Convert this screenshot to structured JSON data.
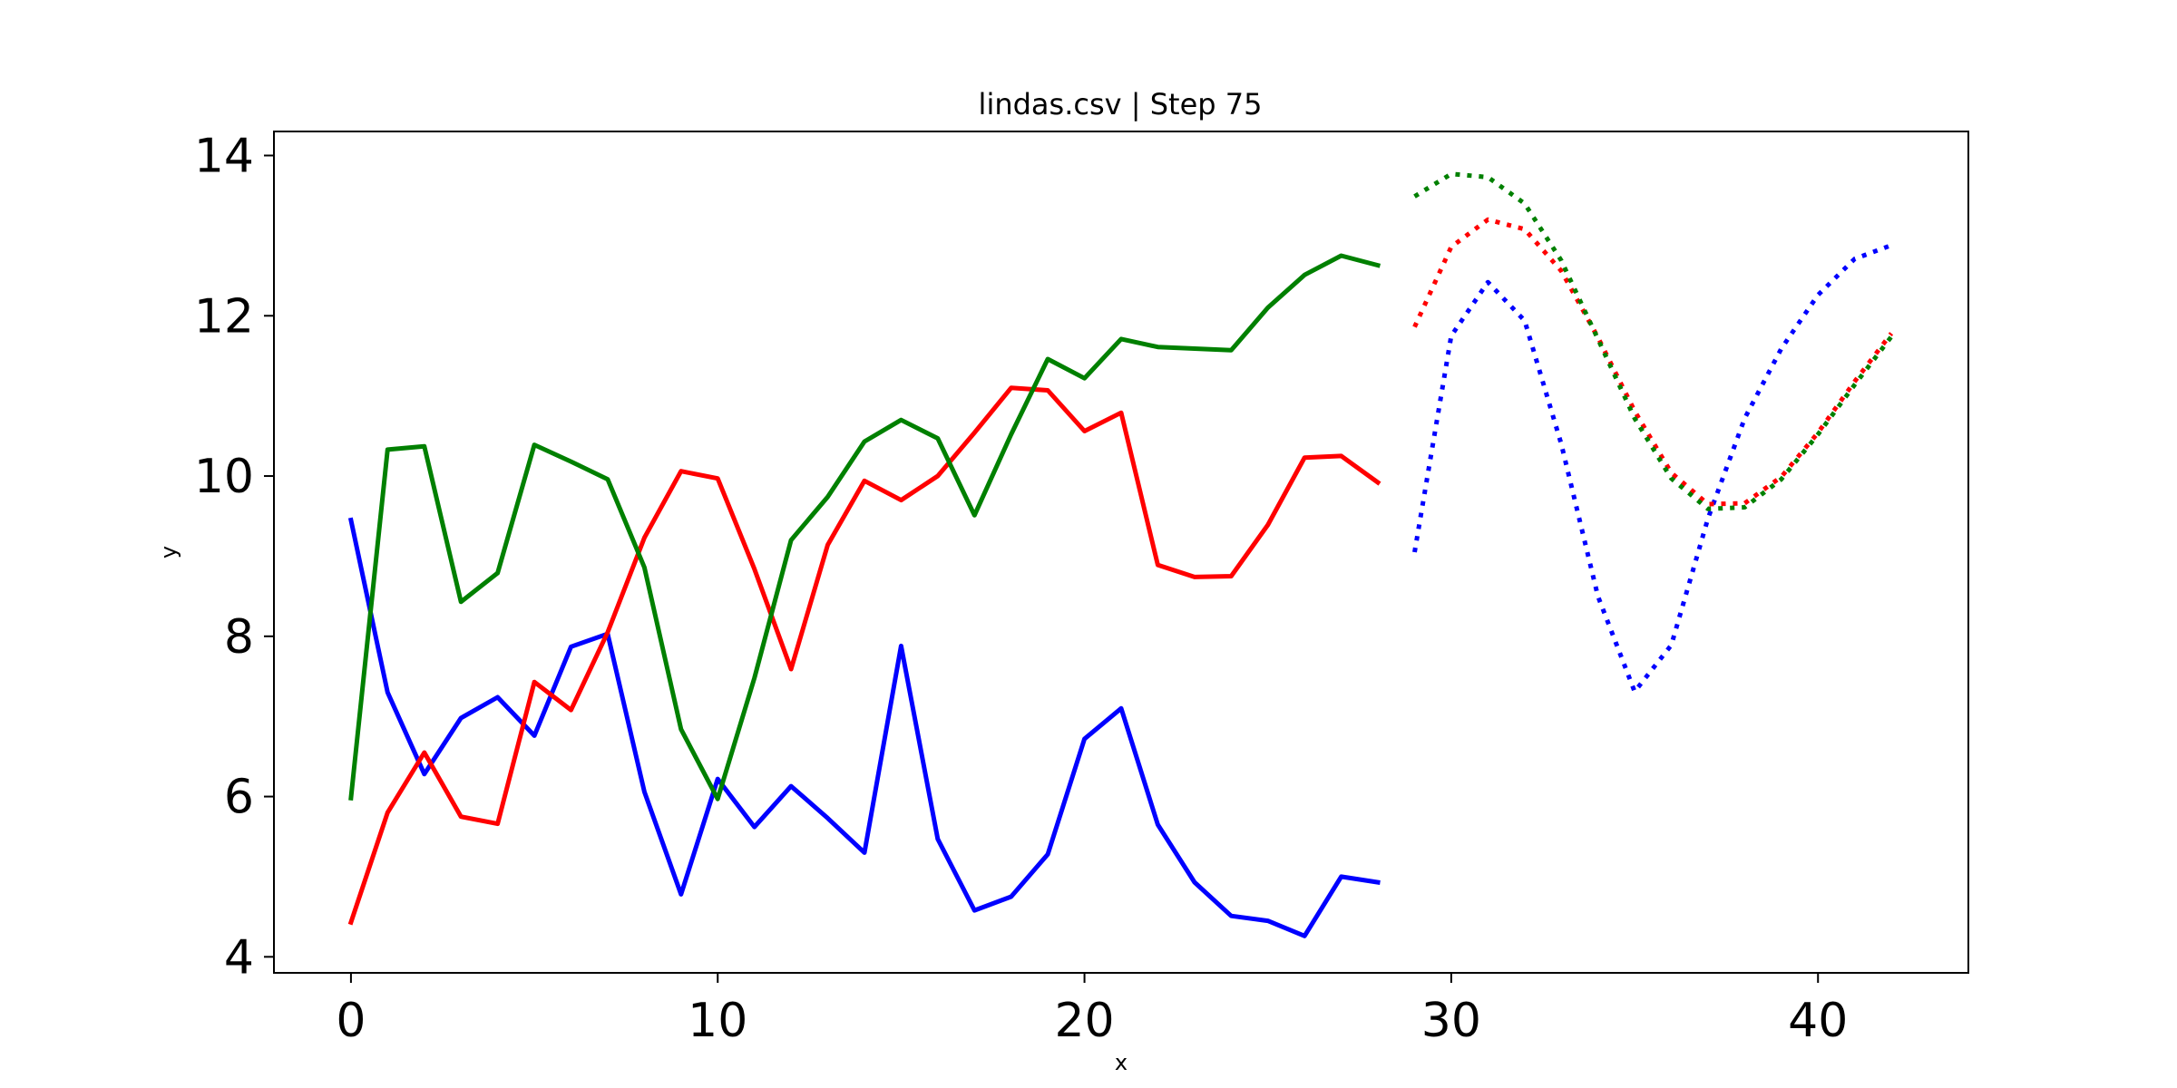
{
  "chart_data": {
    "type": "line",
    "title": "lindas.csv | Step 75",
    "xlabel": "x",
    "ylabel": "y",
    "xlim": [
      -2.1,
      44.1
    ],
    "ylim": [
      3.8,
      14.3
    ],
    "xticks": [
      0,
      10,
      20,
      30,
      40
    ],
    "yticks": [
      4,
      6,
      8,
      10,
      12,
      14
    ],
    "grid": false,
    "legend": "none",
    "series": [
      {
        "color": "#0000ff",
        "style": "solid",
        "x": [
          0,
          1,
          2,
          3,
          4,
          5,
          6,
          7,
          8,
          9,
          10,
          11,
          12,
          13,
          14,
          15,
          16,
          17,
          18,
          19,
          20,
          21,
          22,
          23,
          24,
          25,
          26,
          27,
          28
        ],
        "y": [
          9.45,
          7.3,
          6.28,
          6.98,
          7.24,
          6.76,
          7.87,
          8.03,
          6.06,
          4.78,
          6.22,
          5.62,
          6.13,
          5.73,
          5.3,
          7.88,
          5.47,
          4.58,
          4.75,
          5.28,
          6.72,
          7.1,
          5.65,
          4.93,
          4.51,
          4.45,
          4.26,
          5.0,
          4.93
        ]
      },
      {
        "color": "#ff0000",
        "style": "solid",
        "x": [
          0,
          1,
          2,
          3,
          4,
          5,
          6,
          7,
          8,
          9,
          10,
          11,
          12,
          13,
          14,
          15,
          16,
          17,
          18,
          19,
          20,
          21,
          22,
          23,
          24,
          25,
          26,
          27,
          28
        ],
        "y": [
          4.43,
          5.8,
          6.55,
          5.75,
          5.66,
          7.43,
          7.08,
          8.05,
          9.23,
          10.06,
          9.97,
          8.84,
          7.59,
          9.14,
          9.94,
          9.7,
          10.0,
          10.54,
          11.1,
          11.07,
          10.56,
          10.79,
          8.89,
          8.74,
          8.75,
          9.39,
          10.23,
          10.25,
          9.92
        ]
      },
      {
        "color": "#008000",
        "style": "solid",
        "x": [
          0,
          1,
          2,
          3,
          4,
          5,
          6,
          7,
          8,
          9,
          10,
          11,
          12,
          13,
          14,
          15,
          16,
          17,
          18,
          19,
          20,
          21,
          22,
          23,
          24,
          25,
          26,
          27,
          28
        ],
        "y": [
          5.98,
          10.33,
          10.37,
          8.43,
          8.79,
          10.39,
          10.18,
          9.96,
          8.86,
          6.84,
          5.97,
          7.48,
          9.2,
          9.74,
          10.43,
          10.7,
          10.47,
          9.51,
          10.52,
          11.46,
          11.22,
          11.71,
          11.61,
          11.59,
          11.57,
          12.1,
          12.51,
          12.75,
          12.63
        ]
      },
      {
        "color": "#0000ff",
        "style": "dotted",
        "x": [
          29,
          30,
          31,
          32,
          33,
          34,
          35,
          36,
          37,
          38,
          39,
          40,
          41,
          42
        ],
        "y": [
          9.05,
          11.75,
          12.42,
          11.94,
          10.4,
          8.5,
          7.31,
          7.89,
          9.47,
          10.72,
          11.59,
          12.26,
          12.71,
          12.88
        ]
      },
      {
        "color": "#ff0000",
        "style": "dotted",
        "x": [
          29,
          30,
          31,
          32,
          33,
          34,
          35,
          36,
          37,
          38,
          39,
          40,
          41,
          42
        ],
        "y": [
          11.86,
          12.86,
          13.2,
          13.08,
          12.56,
          11.73,
          10.81,
          10.04,
          9.65,
          9.66,
          9.99,
          10.54,
          11.18,
          11.78
        ]
      },
      {
        "color": "#008000",
        "style": "dotted",
        "x": [
          29,
          30,
          31,
          32,
          33,
          34,
          35,
          36,
          37,
          38,
          39,
          40,
          41,
          42
        ],
        "y": [
          13.49,
          13.77,
          13.73,
          13.4,
          12.69,
          11.71,
          10.72,
          9.97,
          9.59,
          9.61,
          9.96,
          10.52,
          11.14,
          11.74
        ]
      }
    ]
  }
}
